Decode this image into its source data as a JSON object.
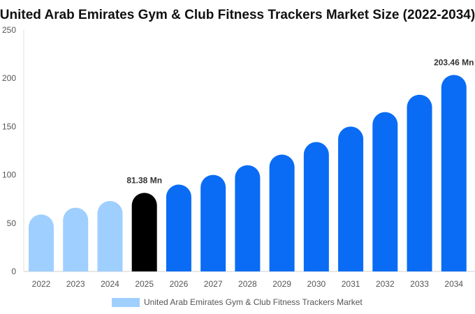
{
  "chart_data": {
    "type": "bar",
    "title": "United Arab Emirates Gym & Club Fitness Trackers Market Size (2022-2034)",
    "xlabel": "",
    "ylabel": "",
    "categories": [
      "2022",
      "2023",
      "2024",
      "2025",
      "2026",
      "2027",
      "2028",
      "2029",
      "2030",
      "2031",
      "2032",
      "2033",
      "2034"
    ],
    "series": [
      {
        "name": "United Arab Emirates Gym & Club Fitness Trackers Market",
        "values": [
          59,
          66,
          73,
          81.38,
          90,
          100,
          110,
          121,
          134,
          150,
          165,
          183,
          203.46
        ]
      }
    ],
    "ylim": [
      0,
      250
    ],
    "yticks": [
      0,
      50,
      100,
      150,
      200,
      250
    ],
    "data_labels": [
      {
        "index": 3,
        "text": "81.38 Mn"
      },
      {
        "index": 12,
        "text": "203.46 Mn"
      }
    ],
    "colors": {
      "historic": "#9fcfff",
      "base_year": "#000000",
      "forecast": "#0a6cf5",
      "legend": "#9fcfff"
    },
    "grid": false,
    "legend_position": "bottom"
  }
}
